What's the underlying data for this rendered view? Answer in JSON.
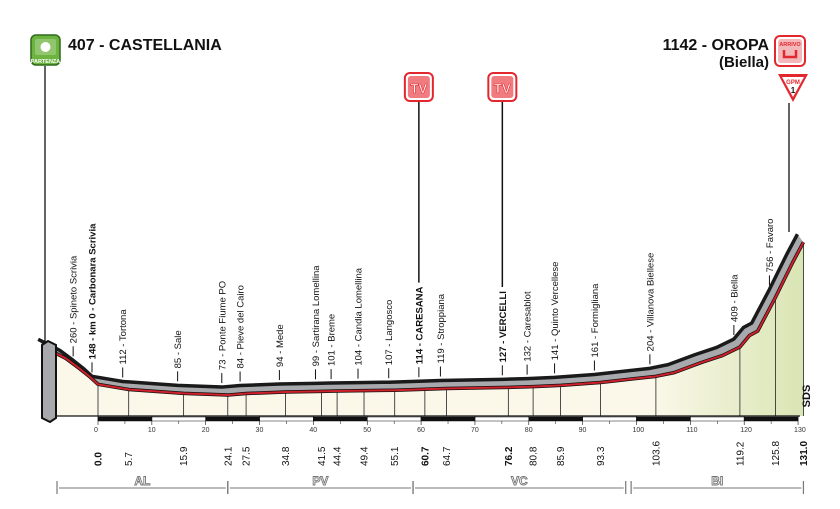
{
  "header": {
    "start": {
      "title": "407 - CASTELLANIA",
      "badge": "PARTENZA",
      "badge_color": "#6cb33f"
    },
    "finish": {
      "title": "1142 - OROPA",
      "subtitle": "(Biella)",
      "badge": "ARRIVO",
      "badge_color": "#e2282e"
    },
    "gpm": {
      "label": "GPM",
      "category": "1",
      "color": "#e2282e"
    },
    "tv_label": "TV",
    "tv_color": "#e2282e",
    "sds": "SDS"
  },
  "regions": [
    {
      "code": "AL",
      "from_km": -8,
      "to_km": 24.1
    },
    {
      "code": "PV",
      "from_km": 24.1,
      "to_km": 58.5
    },
    {
      "code": "VC",
      "from_km": 58.5,
      "to_km": 98
    },
    {
      "code": "BI",
      "from_km": 99,
      "to_km": 131
    }
  ],
  "chart_data": {
    "type": "area",
    "xlabel": "",
    "ylabel": "",
    "xlim": [
      -10,
      131
    ],
    "x_ticks": [
      0,
      10,
      20,
      30,
      40,
      50,
      60,
      70,
      80,
      90,
      100,
      110,
      120,
      130
    ],
    "colors": {
      "front_line": "#d0202a",
      "ribbon": "#a7a9ac",
      "top_line": "#1a1a1a",
      "fill": "#fbf8e9",
      "fill_climb": "#d9e5b4"
    },
    "profile": [
      {
        "km": -10,
        "alt": 407
      },
      {
        "km": -6,
        "alt": 330
      },
      {
        "km": -3.5,
        "alt": 260
      },
      {
        "km": -1.5,
        "alt": 200
      },
      {
        "km": 0,
        "alt": 148
      },
      {
        "km": 5.7,
        "alt": 112
      },
      {
        "km": 15.9,
        "alt": 85
      },
      {
        "km": 24.1,
        "alt": 73
      },
      {
        "km": 27.5,
        "alt": 84
      },
      {
        "km": 34.8,
        "alt": 94
      },
      {
        "km": 41.5,
        "alt": 99
      },
      {
        "km": 44.4,
        "alt": 101
      },
      {
        "km": 49.4,
        "alt": 104
      },
      {
        "km": 55.1,
        "alt": 107
      },
      {
        "km": 60.7,
        "alt": 114
      },
      {
        "km": 64.7,
        "alt": 119
      },
      {
        "km": 76.2,
        "alt": 127
      },
      {
        "km": 80.8,
        "alt": 132
      },
      {
        "km": 85.9,
        "alt": 141
      },
      {
        "km": 93.3,
        "alt": 161
      },
      {
        "km": 103.6,
        "alt": 204
      },
      {
        "km": 107,
        "alt": 230
      },
      {
        "km": 112,
        "alt": 300
      },
      {
        "km": 116,
        "alt": 350
      },
      {
        "km": 119.2,
        "alt": 409
      },
      {
        "km": 121,
        "alt": 490
      },
      {
        "km": 122.5,
        "alt": 520
      },
      {
        "km": 125.8,
        "alt": 756
      },
      {
        "km": 129,
        "alt": 1000
      },
      {
        "km": 131.0,
        "alt": 1142
      }
    ],
    "places": [
      {
        "label": "260 - Spineto Scrivia",
        "km": -3.5,
        "alt": 260,
        "km_label": "",
        "bold": false
      },
      {
        "label": "148 - km 0 - Carbonara Scrivia",
        "km": 0,
        "alt": 148,
        "km_label": "0.0",
        "bold": true
      },
      {
        "label": "112 - Tortona",
        "km": 5.7,
        "alt": 112,
        "km_label": "5.7",
        "bold": false
      },
      {
        "label": "85 - Sale",
        "km": 15.9,
        "alt": 85,
        "km_label": "15.9",
        "bold": false
      },
      {
        "label": "73 - Ponte Fiume PO",
        "km": 24.1,
        "alt": 73,
        "km_label": "24.1",
        "bold": false
      },
      {
        "label": "84 - Pieve del Cairo",
        "km": 27.5,
        "alt": 84,
        "km_label": "27.5",
        "bold": false
      },
      {
        "label": "94 - Mede",
        "km": 34.8,
        "alt": 94,
        "km_label": "34.8",
        "bold": false
      },
      {
        "label": "99 - Sartirana Lomellina",
        "km": 41.5,
        "alt": 99,
        "km_label": "41.5",
        "bold": false
      },
      {
        "label": "101 - Breme",
        "km": 44.4,
        "alt": 101,
        "km_label": "44.4",
        "bold": false
      },
      {
        "label": "104 - Candia Lomellina",
        "km": 49.4,
        "alt": 104,
        "km_label": "49.4",
        "bold": false
      },
      {
        "label": "107 - Langosco",
        "km": 55.1,
        "alt": 107,
        "km_label": "55.1",
        "bold": false
      },
      {
        "label": "114 - CARESANA",
        "km": 60.7,
        "alt": 114,
        "km_label": "60.7",
        "bold": true,
        "tv": true
      },
      {
        "label": "119 - Stroppiana",
        "km": 64.7,
        "alt": 119,
        "km_label": "64.7",
        "bold": false
      },
      {
        "label": "127 - VERCELLI",
        "km": 76.2,
        "alt": 127,
        "km_label": "76.2",
        "bold": true,
        "tv": true
      },
      {
        "label": "132 - Caresablot",
        "km": 80.8,
        "alt": 132,
        "km_label": "80.8",
        "bold": false
      },
      {
        "label": "141 - Quinto Vercellese",
        "km": 85.9,
        "alt": 141,
        "km_label": "85.9",
        "bold": false
      },
      {
        "label": "161 - Formigliana",
        "km": 93.3,
        "alt": 161,
        "km_label": "93.3",
        "bold": false
      },
      {
        "label": "204 - Villanova Biellese",
        "km": 103.6,
        "alt": 204,
        "km_label": "103.6",
        "bold": false
      },
      {
        "label": "409 - Biella",
        "km": 119.2,
        "alt": 409,
        "km_label": "119.2",
        "bold": false
      },
      {
        "label": "756 - Favaro",
        "km": 125.8,
        "alt": 756,
        "km_label": "125.8",
        "bold": false
      },
      {
        "label": "",
        "km": 131.0,
        "alt": 1142,
        "km_label": "131.0",
        "bold": true
      }
    ]
  }
}
